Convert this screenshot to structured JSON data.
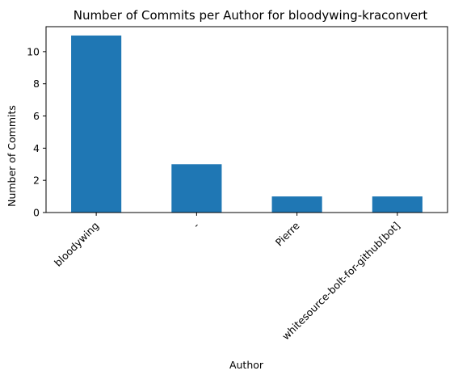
{
  "chart_data": {
    "type": "bar",
    "title": "Number of Commits per Author for bloodywing-kraconvert",
    "xlabel": "Author",
    "ylabel": "Number of Commits",
    "categories": [
      "bloodywing",
      "-",
      "Pierre",
      "whitesource-bolt-for-github[bot]"
    ],
    "values": [
      11,
      3,
      1,
      1
    ],
    "ylim": [
      0,
      11.55
    ],
    "yticks": [
      0,
      2,
      4,
      6,
      8,
      10
    ],
    "grid": false,
    "legend": "none",
    "bar_color": "#1f77b4"
  }
}
